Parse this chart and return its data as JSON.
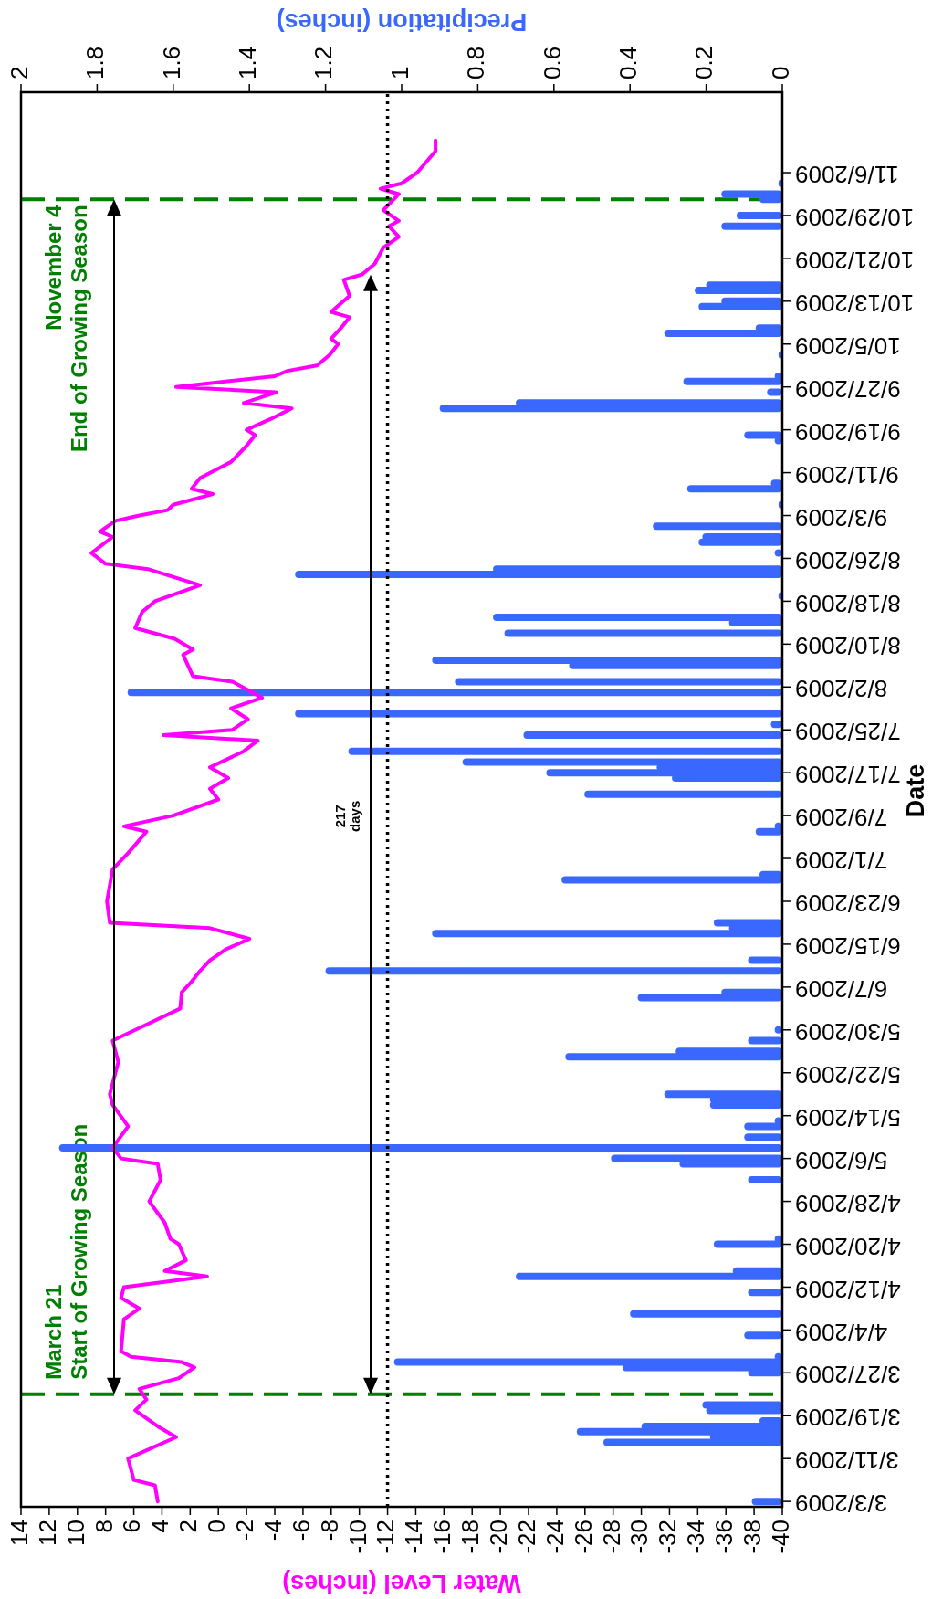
{
  "chart_data": {
    "type": "line",
    "orientation": "horizontal",
    "ylabel": "Date",
    "xlabel": "Water Level (inches)",
    "x2label": "Precipitation (inches)",
    "ylim": [
      "2009-03-02",
      "2009-11-21"
    ],
    "yticks": [
      {
        "value": "2009-03-03",
        "label": "3/3/2009"
      },
      {
        "value": "2009-03-11",
        "label": "3/11/2009"
      },
      {
        "value": "2009-03-19",
        "label": "3/19/2009"
      },
      {
        "value": "2009-03-27",
        "label": "3/27/2009"
      },
      {
        "value": "2009-04-04",
        "label": "4/4/2009"
      },
      {
        "value": "2009-04-12",
        "label": "4/12/2009"
      },
      {
        "value": "2009-04-20",
        "label": "4/20/2009"
      },
      {
        "value": "2009-04-28",
        "label": "4/28/2009"
      },
      {
        "value": "2009-05-06",
        "label": "5/6/2009"
      },
      {
        "value": "2009-05-14",
        "label": "5/14/2009"
      },
      {
        "value": "2009-05-22",
        "label": "5/22/2009"
      },
      {
        "value": "2009-05-30",
        "label": "5/30/2009"
      },
      {
        "value": "2009-06-07",
        "label": "6/7/2009"
      },
      {
        "value": "2009-06-15",
        "label": "6/15/2009"
      },
      {
        "value": "2009-06-23",
        "label": "6/23/2009"
      },
      {
        "value": "2009-07-01",
        "label": "7/1/2009"
      },
      {
        "value": "2009-07-09",
        "label": "7/9/2009"
      },
      {
        "value": "2009-07-17",
        "label": "7/17/2009"
      },
      {
        "value": "2009-07-25",
        "label": "7/25/2009"
      },
      {
        "value": "2009-08-02",
        "label": "8/2/2009"
      },
      {
        "value": "2009-08-10",
        "label": "8/10/2009"
      },
      {
        "value": "2009-08-18",
        "label": "8/18/2009"
      },
      {
        "value": "2009-08-26",
        "label": "8/26/2009"
      },
      {
        "value": "2009-09-03",
        "label": "9/3/2009"
      },
      {
        "value": "2009-09-11",
        "label": "9/11/2009"
      },
      {
        "value": "2009-09-19",
        "label": "9/19/2009"
      },
      {
        "value": "2009-09-27",
        "label": "9/27/2009"
      },
      {
        "value": "2009-10-05",
        "label": "10/5/2009"
      },
      {
        "value": "2009-10-13",
        "label": "10/13/2009"
      },
      {
        "value": "2009-10-21",
        "label": "10/21/2009"
      },
      {
        "value": "2009-10-29",
        "label": "10/29/2009"
      },
      {
        "value": "2009-11-06",
        "label": "11/6/2009"
      }
    ],
    "xlim": [
      14,
      -40
    ],
    "xticks": [
      14,
      12,
      10,
      8,
      6,
      4,
      2,
      0,
      -2,
      -4,
      -6,
      -8,
      -10,
      -12,
      -14,
      -16,
      -18,
      -20,
      -22,
      -24,
      -26,
      -28,
      -30,
      -32,
      -34,
      -36,
      -38,
      -40
    ],
    "x2lim": [
      2,
      0
    ],
    "x2ticks": [
      2,
      1.8,
      1.6,
      1.4,
      1.2,
      1,
      0.8,
      0.6,
      0.4,
      0.2,
      0
    ],
    "series": [
      {
        "type": "bar",
        "axis": "x2",
        "color": "#3a68ff",
        "x": [
          "2009-03-03",
          "2009-03-14",
          "2009-03-15",
          "2009-03-16",
          "2009-03-17",
          "2009-03-18",
          "2009-03-20",
          "2009-03-21",
          "2009-03-27",
          "2009-03-28",
          "2009-03-29",
          "2009-03-30",
          "2009-04-03",
          "2009-04-07",
          "2009-04-11",
          "2009-04-14",
          "2009-04-15",
          "2009-04-20",
          "2009-04-21",
          "2009-05-02",
          "2009-05-05",
          "2009-05-06",
          "2009-05-08",
          "2009-05-10",
          "2009-05-12",
          "2009-05-13",
          "2009-05-16",
          "2009-05-17",
          "2009-05-18",
          "2009-05-25",
          "2009-05-26",
          "2009-05-28",
          "2009-05-30",
          "2009-06-05",
          "2009-06-06",
          "2009-06-10",
          "2009-06-12",
          "2009-06-17",
          "2009-06-18",
          "2009-06-19",
          "2009-06-27",
          "2009-06-28",
          "2009-07-06",
          "2009-07-07",
          "2009-07-13",
          "2009-07-16",
          "2009-07-17",
          "2009-07-18",
          "2009-07-19",
          "2009-07-21",
          "2009-07-24",
          "2009-07-26",
          "2009-07-28",
          "2009-08-01",
          "2009-08-03",
          "2009-08-06",
          "2009-08-07",
          "2009-08-12",
          "2009-08-14",
          "2009-08-15",
          "2009-08-19",
          "2009-08-23",
          "2009-08-24",
          "2009-08-27",
          "2009-08-29",
          "2009-08-30",
          "2009-09-01",
          "2009-09-05",
          "2009-09-08",
          "2009-09-09",
          "2009-09-17",
          "2009-09-18",
          "2009-09-23",
          "2009-09-24",
          "2009-09-26",
          "2009-09-28",
          "2009-09-29",
          "2009-10-03",
          "2009-10-07",
          "2009-10-08",
          "2009-10-12",
          "2009-10-13",
          "2009-10-15",
          "2009-10-16",
          "2009-10-27",
          "2009-10-29",
          "2009-11-01",
          "2009-11-02",
          "2009-11-04"
        ],
        "values": [
          0.08,
          0.47,
          0.19,
          0.54,
          0.37,
          0.06,
          0.2,
          0.21,
          0.09,
          0.42,
          1.02,
          0.02,
          0.1,
          0.4,
          0.09,
          0.7,
          0.13,
          0.18,
          0.02,
          0.09,
          0.27,
          0.45,
          1.9,
          0.1,
          0.1,
          0.02,
          0.19,
          0.19,
          0.31,
          0.57,
          0.28,
          0.09,
          0.02,
          0.38,
          0.16,
          1.2,
          0.09,
          0.92,
          0.14,
          0.18,
          0.58,
          0.06,
          0.07,
          0.02,
          0.52,
          0.29,
          0.62,
          0.33,
          0.84,
          1.14,
          0.68,
          0.03,
          1.28,
          1.72,
          0.86,
          0.56,
          0.92,
          0.73,
          0.14,
          0.76,
          0.01,
          1.28,
          0.76,
          0.02,
          0.22,
          0.21,
          0.34,
          0.01,
          0.25,
          0.03,
          0.02,
          0.1,
          0.9,
          0.7,
          0.04,
          0.26,
          0.02,
          0.01,
          0.31,
          0.07,
          0.22,
          0.16,
          0.23,
          0.2,
          0.16,
          0.12,
          0.06,
          0.16,
          0.01
        ]
      },
      {
        "color": "#ff00ff",
        "x": [
          "2009-03-03",
          "2009-03-06",
          "2009-03-07",
          "2009-03-11",
          "2009-03-15",
          "2009-03-17",
          "2009-03-20",
          "2009-03-22",
          "2009-03-24",
          "2009-03-26",
          "2009-03-28",
          "2009-03-29",
          "2009-03-30",
          "2009-03-31",
          "2009-04-06",
          "2009-04-08",
          "2009-04-10",
          "2009-04-12",
          "2009-04-14",
          "2009-04-15",
          "2009-04-17",
          "2009-04-20",
          "2009-04-21",
          "2009-04-24",
          "2009-04-28",
          "2009-05-02",
          "2009-05-05",
          "2009-05-06",
          "2009-05-08",
          "2009-05-12",
          "2009-05-16",
          "2009-05-18",
          "2009-05-24",
          "2009-05-28",
          "2009-05-31",
          "2009-06-03",
          "2009-06-06",
          "2009-06-08",
          "2009-06-10",
          "2009-06-12",
          "2009-06-14",
          "2009-06-16",
          "2009-06-18",
          "2009-06-19",
          "2009-06-23",
          "2009-06-29",
          "2009-07-02",
          "2009-07-06",
          "2009-07-07",
          "2009-07-09",
          "2009-07-12",
          "2009-07-14",
          "2009-07-16",
          "2009-07-18",
          "2009-07-21",
          "2009-07-23",
          "2009-07-24",
          "2009-07-25",
          "2009-07-27",
          "2009-07-29",
          "2009-07-31",
          "2009-08-03",
          "2009-08-04",
          "2009-08-08",
          "2009-08-09",
          "2009-08-11",
          "2009-08-13",
          "2009-08-16",
          "2009-08-18",
          "2009-08-21",
          "2009-08-24",
          "2009-08-25",
          "2009-08-27",
          "2009-08-30",
          "2009-08-31",
          "2009-09-02",
          "2009-09-03",
          "2009-09-04",
          "2009-09-05",
          "2009-09-07",
          "2009-09-08",
          "2009-09-10",
          "2009-09-13",
          "2009-09-16",
          "2009-09-18",
          "2009-09-19",
          "2009-09-21",
          "2009-09-23",
          "2009-09-24",
          "2009-09-26",
          "2009-09-27",
          "2009-09-29",
          "2009-09-30",
          "2009-10-01",
          "2009-10-03",
          "2009-10-05",
          "2009-10-06",
          "2009-10-08",
          "2009-10-10",
          "2009-10-11",
          "2009-10-14",
          "2009-10-17",
          "2009-10-18",
          "2009-10-20",
          "2009-10-23",
          "2009-10-25",
          "2009-10-27",
          "2009-10-28",
          "2009-10-30",
          "2009-11-02",
          "2009-11-03",
          "2009-11-04",
          "2009-11-06",
          "2009-11-10",
          "2009-11-12"
        ],
        "values": [
          4.3,
          4.5,
          6.0,
          6.4,
          3.0,
          4.3,
          5.9,
          5.1,
          5.6,
          2.8,
          1.7,
          2.6,
          6.2,
          6.9,
          6.7,
          5.6,
          6.9,
          6.7,
          0.8,
          3.8,
          2.3,
          2.8,
          3.4,
          3.8,
          4.9,
          4.1,
          4.3,
          6.9,
          7.5,
          6.4,
          7.5,
          7.7,
          7.1,
          7.5,
          5.1,
          2.7,
          2.6,
          1.9,
          1.3,
          0.6,
          -0.5,
          -2.2,
          0.6,
          7.7,
          7.9,
          7.5,
          6.4,
          5.1,
          6.7,
          3.2,
          0,
          0.6,
          -0.7,
          0.6,
          -1.8,
          -2.8,
          3.9,
          -1.0,
          -2.1,
          -0.9,
          -3.1,
          -1.0,
          1.8,
          2.5,
          1.8,
          3.1,
          5.9,
          5.4,
          4.5,
          1.3,
          5.0,
          8.0,
          9.0,
          7.5,
          8.4,
          7.3,
          5.6,
          3.6,
          3.2,
          0.4,
          1.9,
          1.3,
          -0.9,
          -2.0,
          -2.6,
          -2.0,
          -3.7,
          -5.2,
          -1.8,
          -4.1,
          3.0,
          -4.0,
          -4.9,
          -7.0,
          -7.9,
          -8.5,
          -8.0,
          -8.7,
          -9.3,
          -8.0,
          -9.3,
          -8.9,
          -10.2,
          -11.1,
          -11.7,
          -12.8,
          -12.1,
          -12.8,
          -11.7,
          -12.8,
          -11.5,
          -13.0,
          -14.1,
          -15.4,
          -15.4
        ]
      }
    ],
    "ref_lines": [
      {
        "axis": "y",
        "value": "2009-03-23",
        "label": "March 21\nStart of Growing Season",
        "color": "#008000",
        "line_style": "dashed"
      },
      {
        "axis": "y",
        "value": "2009-11-01",
        "label": "November 4\nEnd of Growing Season",
        "color": "#008000",
        "line_style": "dashed"
      },
      {
        "axis": "x",
        "value": -12,
        "color": "#000000",
        "line_style": "dotted"
      }
    ],
    "annotations": [
      "217\ndays"
    ]
  }
}
